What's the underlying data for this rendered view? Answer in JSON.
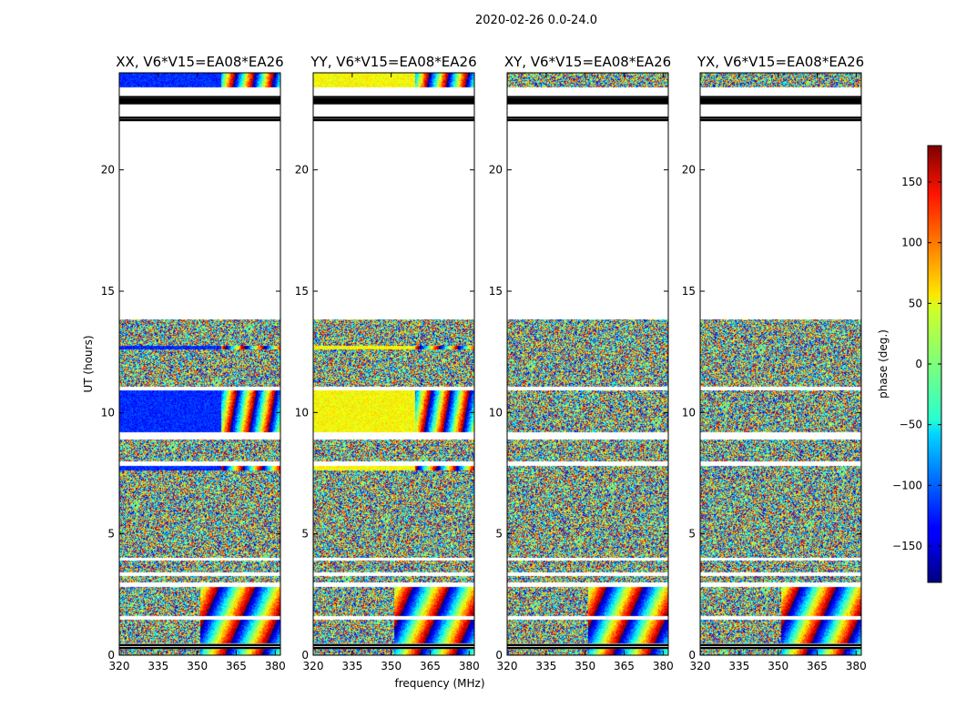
{
  "suptitle": "2020-02-26 0.0-24.0",
  "chart_data": {
    "type": "heatmap",
    "xlabel": "frequency (MHz)",
    "ylabel": "UT (hours)",
    "xlim": [
      320,
      382
    ],
    "ylim": [
      0,
      24
    ],
    "xticks": [
      320,
      335,
      350,
      365,
      380
    ],
    "yticks": [
      0,
      5,
      10,
      15,
      20
    ],
    "panels": [
      {
        "title": "XX, V6*V15=EA08*EA26",
        "polarization": "XX",
        "baseline_phase_deg_dominant": -120
      },
      {
        "title": "YY, V6*V15=EA08*EA26",
        "polarization": "YY",
        "baseline_phase_deg_dominant": 45
      },
      {
        "title": "XY, V6*V15=EA08*EA26",
        "polarization": "XY",
        "baseline_phase_deg_dominant": null
      },
      {
        "title": "YX, V6*V15=EA08*EA26",
        "polarization": "YX",
        "baseline_phase_deg_dominant": null
      }
    ],
    "data_ranges_hours": [
      [
        0.0,
        0.25
      ],
      [
        0.5,
        1.45
      ],
      [
        1.6,
        2.8
      ],
      [
        3.0,
        3.25
      ],
      [
        3.4,
        3.9
      ],
      [
        4.0,
        7.8
      ],
      [
        8.0,
        8.9
      ],
      [
        9.2,
        10.9
      ],
      [
        11.05,
        13.85
      ],
      [
        23.4,
        24.0
      ]
    ],
    "blank_hours": [
      [
        13.85,
        22.05
      ]
    ],
    "colorbar": {
      "label": "phase (deg.)",
      "range": [
        -180,
        180
      ],
      "ticks": [
        -150,
        -100,
        -50,
        0,
        50,
        100,
        150
      ],
      "colormap": "jet"
    }
  }
}
